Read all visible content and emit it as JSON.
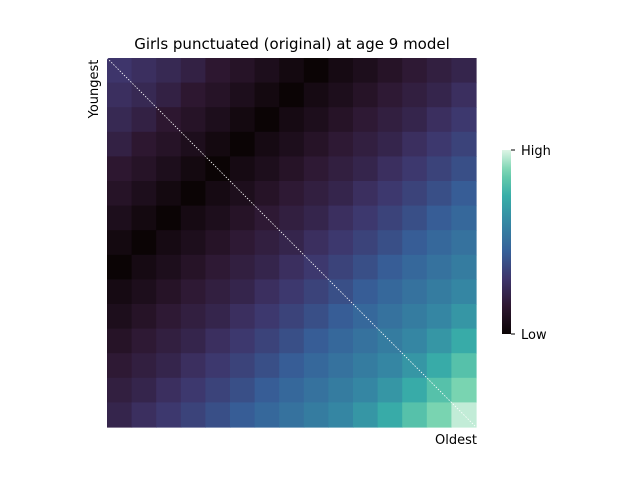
{
  "chart_data": {
    "type": "heatmap",
    "title": "Girls punctuated (original) at age 9 model",
    "ylabel": "Youngest",
    "xlabel": "Oldest",
    "colorbar": {
      "high_label": "High",
      "low_label": "Low"
    },
    "colormap": "mako",
    "rows": 15,
    "cols": 15,
    "value_range": [
      0,
      1
    ],
    "diagonal_line": true,
    "values": [
      [
        0.3,
        0.27,
        0.24,
        0.2,
        0.15,
        0.12,
        0.08,
        0.04,
        0.0,
        0.05,
        0.08,
        0.12,
        0.16,
        0.19,
        0.22
      ],
      [
        0.27,
        0.24,
        0.2,
        0.15,
        0.12,
        0.08,
        0.04,
        0.0,
        0.05,
        0.08,
        0.12,
        0.16,
        0.19,
        0.22,
        0.27
      ],
      [
        0.24,
        0.2,
        0.15,
        0.12,
        0.08,
        0.04,
        0.0,
        0.05,
        0.08,
        0.12,
        0.16,
        0.19,
        0.22,
        0.27,
        0.31
      ],
      [
        0.2,
        0.15,
        0.12,
        0.08,
        0.04,
        0.0,
        0.05,
        0.08,
        0.12,
        0.16,
        0.19,
        0.22,
        0.27,
        0.31,
        0.35
      ],
      [
        0.15,
        0.12,
        0.08,
        0.04,
        0.0,
        0.05,
        0.08,
        0.12,
        0.16,
        0.19,
        0.22,
        0.27,
        0.31,
        0.35,
        0.39
      ],
      [
        0.12,
        0.08,
        0.04,
        0.0,
        0.05,
        0.08,
        0.12,
        0.16,
        0.19,
        0.22,
        0.27,
        0.31,
        0.35,
        0.39,
        0.44
      ],
      [
        0.08,
        0.04,
        0.0,
        0.05,
        0.08,
        0.12,
        0.16,
        0.19,
        0.22,
        0.27,
        0.31,
        0.35,
        0.39,
        0.44,
        0.48
      ],
      [
        0.04,
        0.0,
        0.05,
        0.08,
        0.12,
        0.16,
        0.19,
        0.22,
        0.27,
        0.31,
        0.35,
        0.39,
        0.44,
        0.48,
        0.52
      ],
      [
        0.0,
        0.05,
        0.08,
        0.12,
        0.16,
        0.19,
        0.22,
        0.27,
        0.31,
        0.35,
        0.39,
        0.44,
        0.48,
        0.52,
        0.56
      ],
      [
        0.05,
        0.08,
        0.12,
        0.16,
        0.19,
        0.22,
        0.27,
        0.31,
        0.35,
        0.39,
        0.44,
        0.48,
        0.52,
        0.56,
        0.6
      ],
      [
        0.08,
        0.12,
        0.16,
        0.19,
        0.22,
        0.27,
        0.31,
        0.35,
        0.39,
        0.44,
        0.48,
        0.52,
        0.56,
        0.6,
        0.66
      ],
      [
        0.12,
        0.16,
        0.19,
        0.22,
        0.27,
        0.31,
        0.35,
        0.39,
        0.44,
        0.48,
        0.52,
        0.56,
        0.6,
        0.66,
        0.74
      ],
      [
        0.16,
        0.19,
        0.22,
        0.27,
        0.31,
        0.35,
        0.39,
        0.44,
        0.48,
        0.52,
        0.56,
        0.6,
        0.66,
        0.74,
        0.82
      ],
      [
        0.19,
        0.22,
        0.27,
        0.31,
        0.35,
        0.39,
        0.44,
        0.48,
        0.52,
        0.56,
        0.6,
        0.66,
        0.74,
        0.82,
        0.89
      ],
      [
        0.22,
        0.27,
        0.31,
        0.35,
        0.39,
        0.44,
        0.48,
        0.52,
        0.56,
        0.6,
        0.66,
        0.74,
        0.82,
        0.89,
        0.97
      ]
    ]
  }
}
